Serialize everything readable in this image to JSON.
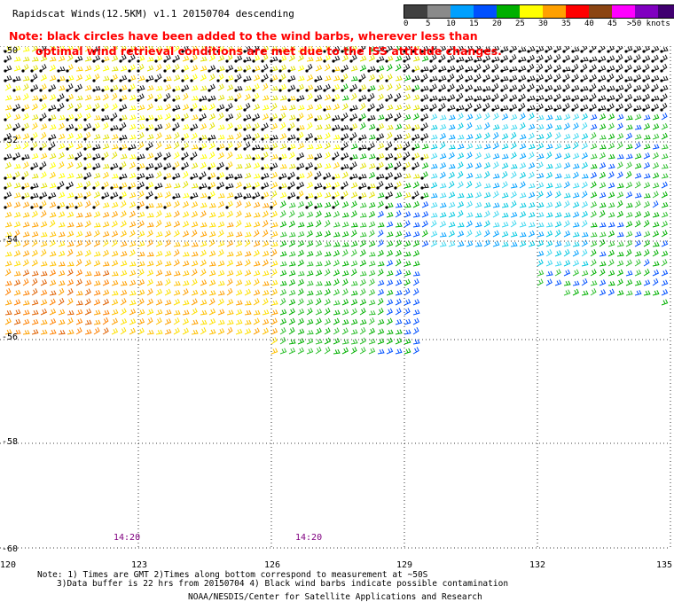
{
  "title": "Rapidscat Winds(12.5KM) v1.1 20150704 descending",
  "note": {
    "line1": "Note: black circles have been added to the wind barbs, wherever less than",
    "line2": "optimal wind retrieval conditions are met due to the ISS attitude changes."
  },
  "legend": {
    "labels": [
      "0",
      "5",
      "10",
      "15",
      "20",
      "25",
      "30",
      "35",
      "40",
      "45",
      ">50 knots"
    ],
    "colors": [
      "#404040",
      "#8a8a8a",
      "#00a0ff",
      "#0050ff",
      "#00b000",
      "#ffff00",
      "#ffa000",
      "#ff0000",
      "#8b4513",
      "#ff00ff",
      "#8000c0",
      "#400070"
    ]
  },
  "axes": {
    "lat_labels": [
      "-50",
      "-52",
      "-54",
      "-56",
      "-58",
      "-60"
    ],
    "lon_labels": [
      "120",
      "123",
      "126",
      "129",
      "132",
      "135"
    ]
  },
  "times": [
    "14:20",
    "14:20"
  ],
  "footnote": {
    "line1": "Note: 1) Times are GMT 2)Times along bottom correspond to measurement at ~50S",
    "line2": "3)Data buffer is 22 hrs from 20150704 4) Black wind barbs indicate possible contamination"
  },
  "credit": "NOAA/NESDIS/Center for Satellite Applications and Research"
}
